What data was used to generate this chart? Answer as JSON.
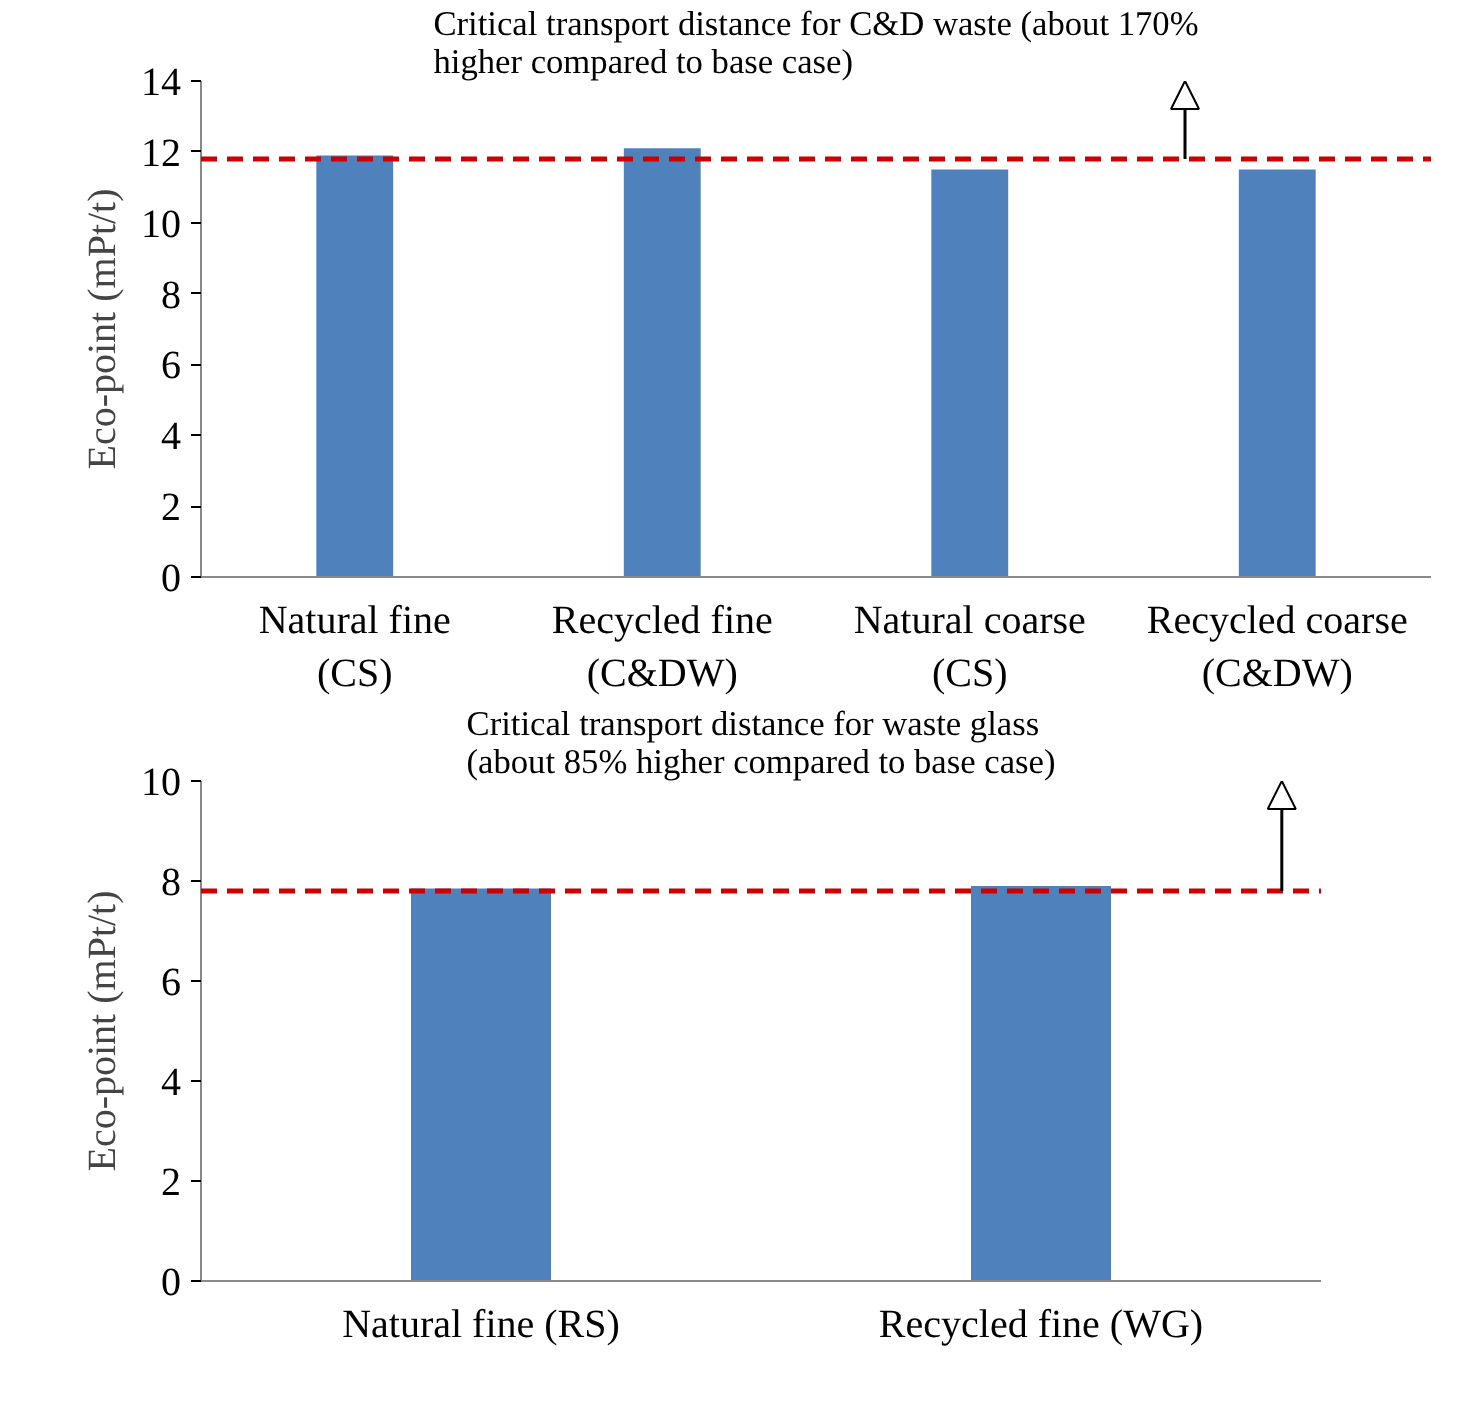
{
  "chart_data": [
    {
      "type": "bar",
      "ylabel": "Eco-point (mPt/t)",
      "categories": [
        "Natural fine\n(CS)",
        "Recycled fine\n(C&DW)",
        "Natural coarse\n(CS)",
        "Recycled coarse\n(C&DW)"
      ],
      "values": [
        11.9,
        12.1,
        11.5,
        11.5
      ],
      "color": "#4f81bd",
      "ylim": [
        0,
        14
      ],
      "yticks": [
        0,
        2,
        4,
        6,
        8,
        10,
        12,
        14
      ],
      "annotations": [
        "Critical transport distance for C&D waste (about 170%\nhigher compared to base case)"
      ],
      "ref_lines": [
        {
          "axis": "y",
          "value": 11.8,
          "color": "#cc0000",
          "line_style": "dashed"
        }
      ]
    },
    {
      "type": "bar",
      "ylabel": "Eco-point (mPt/t)",
      "categories": [
        "Natural fine (RS)",
        "Recycled fine (WG)"
      ],
      "values": [
        7.85,
        7.9
      ],
      "color": "#4f81bd",
      "ylim": [
        0,
        10
      ],
      "yticks": [
        0,
        2,
        4,
        6,
        8,
        10
      ],
      "annotations": [
        "Critical transport distance for waste glass\n(about 85% higher compared to base case)"
      ],
      "ref_lines": [
        {
          "axis": "y",
          "value": 7.8,
          "color": "#cc0000",
          "line_style": "dashed"
        }
      ]
    }
  ]
}
